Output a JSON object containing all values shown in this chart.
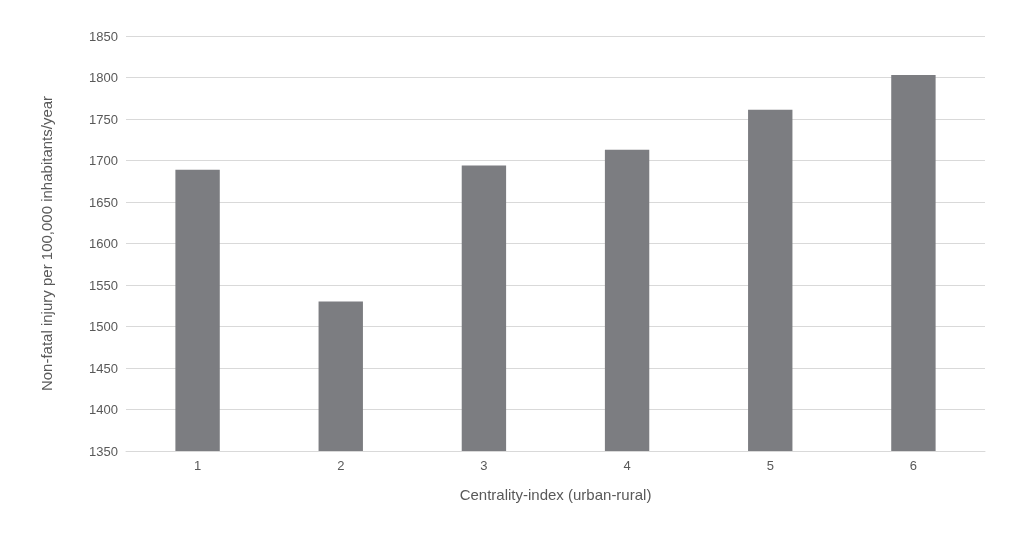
{
  "chart_data": {
    "type": "bar",
    "xlabel": "Centrality-index (urban-rural)",
    "ylabel": "Non-fatal injury per 100,000 inhabitants/year",
    "categories": [
      "1",
      "2",
      "3",
      "4",
      "5",
      "6"
    ],
    "values": [
      1689,
      1530,
      1694,
      1713,
      1761,
      1803
    ],
    "color": "#7c7d81",
    "ylim": [
      1350,
      1850
    ],
    "yticks": [
      1350,
      1400,
      1450,
      1500,
      1550,
      1600,
      1650,
      1700,
      1750,
      1800,
      1850
    ],
    "grid": "y"
  }
}
